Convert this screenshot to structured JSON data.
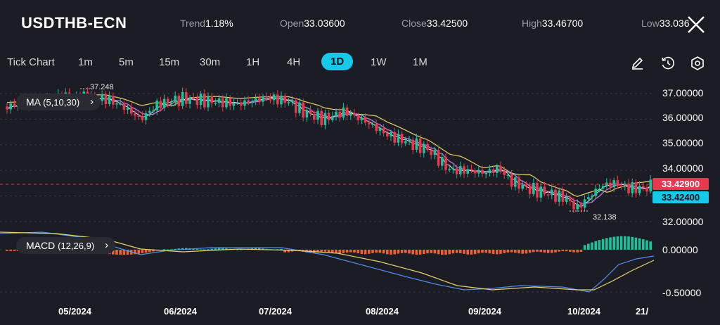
{
  "header": {
    "symbol": "USDTHB-ECN",
    "stats": [
      {
        "label": "Trend",
        "value": "1.18%"
      },
      {
        "label": "Open",
        "value": "33.03600"
      },
      {
        "label": "Close",
        "value": "33.42500"
      },
      {
        "label": "High",
        "value": "33.46700"
      },
      {
        "label": "Low",
        "value": "33.036"
      }
    ]
  },
  "timeframes": [
    "Tick Chart",
    "1m",
    "5m",
    "15m",
    "30m",
    "1H",
    "4H",
    "1D",
    "1W",
    "1M"
  ],
  "active_timeframe": "1D",
  "tools": [
    "pencil-icon",
    "history-icon",
    "settings-icon"
  ],
  "indicators": {
    "ma": {
      "label": "MA",
      "params": "(5,10,30)"
    },
    "macd": {
      "label": "MACD",
      "params": "(12,26,9)"
    }
  },
  "price_axis": [
    "37.00000",
    "36.00000",
    "35.00000",
    "34.00000",
    "33.00000",
    "32.00000"
  ],
  "macd_axis": [
    "0.00000",
    "-0.50000"
  ],
  "current_prices": {
    "upper": "33.42900",
    "lower": "33.42400"
  },
  "markers": {
    "high": "37.248",
    "low": "32.138"
  },
  "dates": [
    "05/2024",
    "06/2024",
    "07/2024",
    "08/2024",
    "09/2024",
    "10/2024",
    "21/"
  ],
  "colors": {
    "up": "#1fc19c",
    "down": "#e8384f",
    "accent": "#17c9e8",
    "ma5": "#f0f0f0",
    "ma10": "#d37ee8",
    "ma30": "#e6d36a",
    "hist_neg": "#f06030",
    "hist_pos": "#1fc19c",
    "macd": "#4e8ef0",
    "signal": "#e6d36a"
  },
  "chart_data": {
    "type": "candlestick",
    "period": "1D",
    "x": [
      "05/2024",
      "06/2024",
      "07/2024",
      "08/2024",
      "09/2024",
      "10/2024"
    ],
    "close": [
      36.6,
      36.8,
      36.7,
      35.4,
      33.8,
      33.1
    ],
    "ylim": [
      31.6,
      37.4
    ],
    "series": [
      {
        "name": "MA",
        "params": "(5,10,30)"
      },
      {
        "name": "MACD",
        "params": "(12,26,9)"
      }
    ],
    "macd_ylim": [
      -0.6,
      0.15
    ]
  }
}
